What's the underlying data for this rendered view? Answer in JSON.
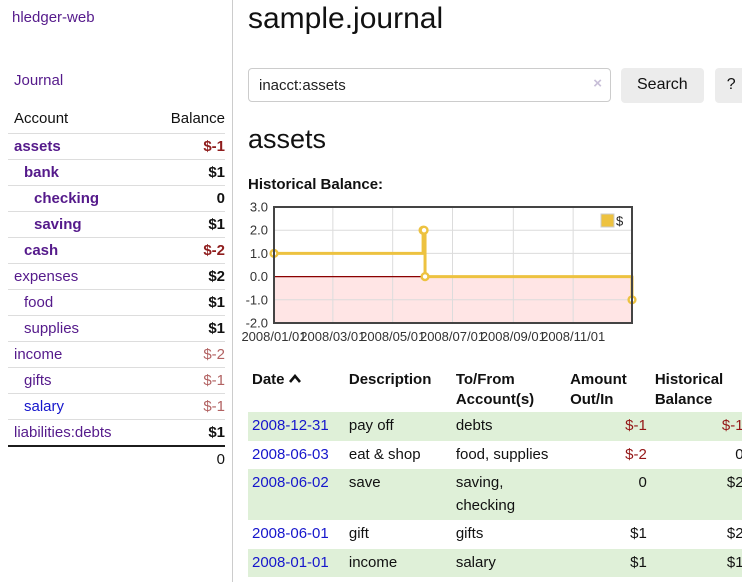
{
  "colors": {
    "link-purple": "#551a8b",
    "link-blue": "#1616cc",
    "negative-strong": "#8f1d1d",
    "negative-soft": "#b26262",
    "register-negative": "#941616",
    "row-highlight": "#dff0d8",
    "button-bg": "#ececec",
    "divider": "#cccccc",
    "chart-yellow": "#edc240"
  },
  "sidebar": {
    "brand": "hledger-web",
    "nav": {
      "journal": "Journal"
    },
    "table_header": {
      "account": "Account",
      "balance": "Balance"
    },
    "accounts": [
      {
        "name": "assets",
        "depth": 0,
        "bold": true,
        "balance": "$-1",
        "negative": true,
        "soft": false,
        "unvisited": false
      },
      {
        "name": "bank",
        "depth": 1,
        "bold": true,
        "balance": "$1",
        "negative": false,
        "soft": false,
        "unvisited": false
      },
      {
        "name": "checking",
        "depth": 2,
        "bold": true,
        "balance": "0",
        "negative": false,
        "soft": false,
        "unvisited": false
      },
      {
        "name": "saving",
        "depth": 2,
        "bold": true,
        "balance": "$1",
        "negative": false,
        "soft": false,
        "unvisited": false
      },
      {
        "name": "cash",
        "depth": 1,
        "bold": true,
        "balance": "$-2",
        "negative": true,
        "soft": false,
        "unvisited": false
      },
      {
        "name": "expenses",
        "depth": 0,
        "bold": false,
        "balance": "$2",
        "negative": false,
        "soft": false,
        "unvisited": false
      },
      {
        "name": "food",
        "depth": 1,
        "bold": false,
        "balance": "$1",
        "negative": false,
        "soft": false,
        "unvisited": false
      },
      {
        "name": "supplies",
        "depth": 1,
        "bold": false,
        "balance": "$1",
        "negative": false,
        "soft": false,
        "unvisited": false
      },
      {
        "name": "income",
        "depth": 0,
        "bold": false,
        "balance": "$-2",
        "negative": true,
        "soft": true,
        "unvisited": false
      },
      {
        "name": "gifts",
        "depth": 1,
        "bold": false,
        "balance": "$-1",
        "negative": true,
        "soft": true,
        "unvisited": false
      },
      {
        "name": "salary",
        "depth": 1,
        "bold": false,
        "balance": "$-1",
        "negative": true,
        "soft": true,
        "unvisited": true
      },
      {
        "name": "liabilities:debts",
        "depth": 0,
        "bold": false,
        "balance": "$1",
        "negative": false,
        "soft": false,
        "unvisited": false
      }
    ],
    "total": "0"
  },
  "main": {
    "title": "sample.journal",
    "search": {
      "value": "inacct:assets",
      "clear_icon": "×",
      "search_button": "Search",
      "help_button": "?"
    },
    "account_heading": "assets",
    "chart_heading": "Historical Balance:"
  },
  "chart_data": {
    "type": "line",
    "step": true,
    "title": "Historical Balance:",
    "series": [
      {
        "name": "$",
        "color": "#edc240",
        "points": [
          [
            "2008-01-01",
            1
          ],
          [
            "2008-06-01",
            2
          ],
          [
            "2008-06-02",
            2
          ],
          [
            "2008-06-03",
            0
          ],
          [
            "2008-12-31",
            -1
          ]
        ]
      }
    ],
    "xlim": [
      "2008-01-01",
      "2008-12-31"
    ],
    "ylim": [
      -2,
      3
    ],
    "x_ticks": [
      "2008/01/01",
      "2008/03/01",
      "2008/05/01",
      "2008/07/01",
      "2008/09/01",
      "2008/11/01"
    ],
    "y_ticks": [
      "3.0",
      "2.0",
      "1.0",
      "0.0",
      "-1.0",
      "-2.0"
    ],
    "grid": true,
    "legend": {
      "position": "top-right",
      "label": "$"
    },
    "negative_region_fill": "#ff5f5f",
    "zero_line_color": "#8b0000"
  },
  "register": {
    "columns": {
      "date": "Date",
      "description": "Description",
      "accounts": "To/From Account(s)",
      "amount": "Amount Out/In",
      "balance": "Historical Balance"
    },
    "rows": [
      {
        "date": "2008-12-31",
        "description": "pay off",
        "accounts": "debts",
        "amount": "$-1",
        "amount_negative": true,
        "balance": "$-1",
        "balance_negative": true,
        "highlight": true
      },
      {
        "date": "2008-06-03",
        "description": "eat & shop",
        "accounts": "food, supplies",
        "amount": "$-2",
        "amount_negative": true,
        "balance": "0",
        "balance_negative": false,
        "highlight": false
      },
      {
        "date": "2008-06-02",
        "description": "save",
        "accounts": "saving, checking",
        "amount": "0",
        "amount_negative": false,
        "balance": "$2",
        "balance_negative": false,
        "highlight": true
      },
      {
        "date": "2008-06-01",
        "description": "gift",
        "accounts": "gifts",
        "amount": "$1",
        "amount_negative": false,
        "balance": "$2",
        "balance_negative": false,
        "highlight": false
      },
      {
        "date": "2008-01-01",
        "description": "income",
        "accounts": "salary",
        "amount": "$1",
        "amount_negative": false,
        "balance": "$1",
        "balance_negative": false,
        "highlight": true
      }
    ]
  }
}
